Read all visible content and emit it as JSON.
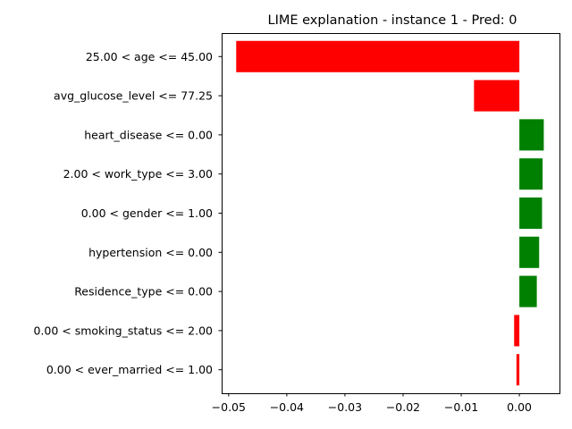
{
  "chart_data": {
    "type": "bar",
    "orientation": "horizontal",
    "title": "LIME explanation - instance 1 - Pred: 0",
    "xlabel": "",
    "ylabel": "",
    "categories": [
      "25.00 < age <= 45.00",
      "avg_glucose_level <= 77.25",
      "heart_disease <= 0.00",
      "2.00 < work_type <= 3.00",
      "0.00 < gender <= 1.00",
      "hypertension <= 0.00",
      "Residence_type <= 0.00",
      "0.00 < smoking_status <= 2.00",
      "0.00 < ever_married <= 1.00"
    ],
    "values": [
      -0.0487,
      -0.0078,
      0.0042,
      0.004,
      0.0039,
      0.0034,
      0.003,
      -0.0009,
      -0.0005
    ],
    "colors": [
      "#ff0000",
      "#ff0000",
      "#008000",
      "#008000",
      "#008000",
      "#008000",
      "#008000",
      "#ff0000",
      "#ff0000"
    ],
    "xlim": [
      -0.0512,
      0.0069
    ],
    "xticks": [
      -0.05,
      -0.04,
      -0.03,
      -0.02,
      -0.01,
      0.0
    ],
    "xtick_labels": [
      "−0.05",
      "−0.04",
      "−0.03",
      "−0.02",
      "−0.01",
      "0.00"
    ],
    "grid": false,
    "legend": "none"
  }
}
